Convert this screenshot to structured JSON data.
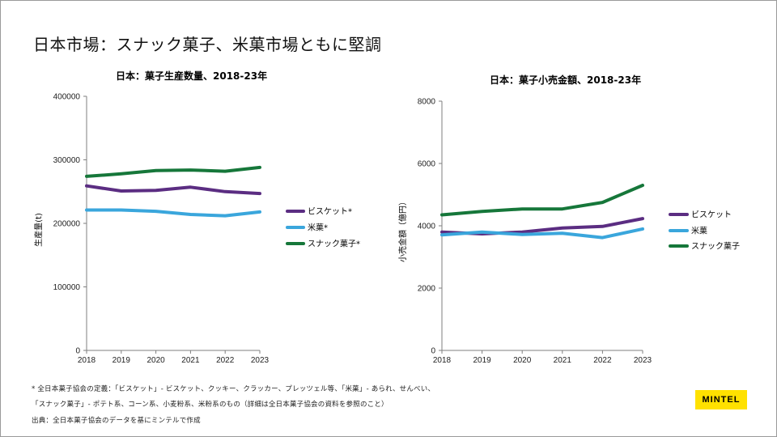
{
  "page": {
    "title": "日本市場：スナック菓子、米菓市場ともに堅調",
    "footnotes": [
      "* 全日本菓子協会の定義：「ビスケット」- ビスケット、クッキー、クラッカー、プレッツェル等、「米菓」- あられ、せんべい、",
      "「スナック菓子」- ポテト系、コーン系、小麦粉系、米粉系のもの（詳細は全日本菓子協会の資料を参照のこと）",
      "出典：全日本菓子協会のデータを基にミンテルで作成"
    ],
    "logo": "MINTEL"
  },
  "chart_data": [
    {
      "type": "line",
      "title": "日本：菓子生産数量、2018-23年",
      "xlabel": "",
      "ylabel": "生産量(t)",
      "x": [
        "2018",
        "2019",
        "2020",
        "2021",
        "2022",
        "2023"
      ],
      "ylim": [
        0,
        400000
      ],
      "yticks": [
        0,
        100000,
        200000,
        300000,
        400000
      ],
      "yticklabels": [
        "0",
        "100000",
        "200000",
        "300000",
        "400000"
      ],
      "series": [
        {
          "name": "ビスケット*",
          "color": "#5b2d82",
          "values": [
            259000,
            251000,
            252000,
            257000,
            250000,
            247000
          ]
        },
        {
          "name": "米菓*",
          "color": "#3aa6dc",
          "values": [
            221000,
            221000,
            219000,
            214000,
            212000,
            218000
          ]
        },
        {
          "name": "スナック菓子*",
          "color": "#16773a",
          "values": [
            274000,
            278000,
            283000,
            284000,
            282000,
            288000
          ]
        }
      ],
      "legend": "right"
    },
    {
      "type": "line",
      "title": "日本：菓子小売金額、2018-23年",
      "xlabel": "",
      "ylabel": "小売金額（億円）",
      "x": [
        "2018",
        "2019",
        "2020",
        "2021",
        "2022",
        "2023"
      ],
      "ylim": [
        0,
        8000
      ],
      "yticks": [
        0,
        2000,
        4000,
        6000,
        8000
      ],
      "yticklabels": [
        "0",
        "2000",
        "4000",
        "6000",
        "8000"
      ],
      "series": [
        {
          "name": "ビスケット",
          "color": "#5b2d82",
          "values": [
            3800,
            3740,
            3800,
            3930,
            3980,
            4230
          ]
        },
        {
          "name": "米菓",
          "color": "#3aa6dc",
          "values": [
            3710,
            3800,
            3720,
            3760,
            3620,
            3900
          ]
        },
        {
          "name": "スナック菓子",
          "color": "#16773a",
          "values": [
            4350,
            4460,
            4540,
            4540,
            4750,
            5300
          ]
        }
      ],
      "legend": "right"
    }
  ]
}
